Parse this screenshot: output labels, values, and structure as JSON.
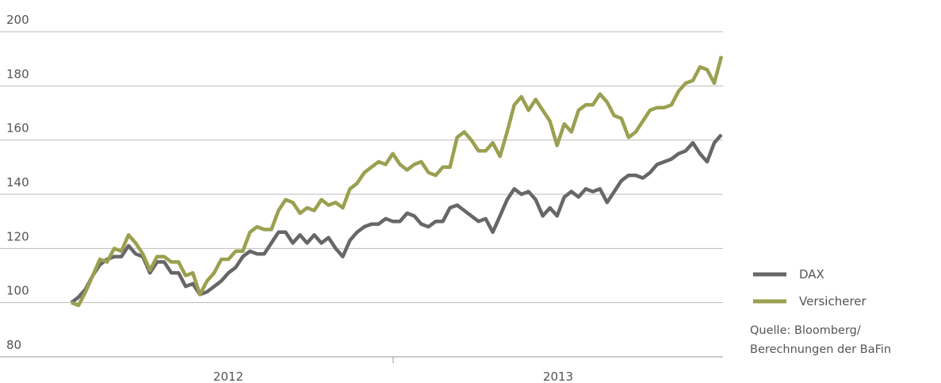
{
  "chart_data": {
    "type": "line",
    "year_labels": [
      "2012",
      "2013"
    ],
    "ylim": [
      80,
      200
    ],
    "yticks": [
      80,
      100,
      120,
      140,
      160,
      180,
      200
    ],
    "grid": true,
    "legend": "right",
    "series": [
      {
        "name": "DAX",
        "color": "#67676a",
        "values": [
          100,
          102,
          105,
          110,
          114,
          116,
          117,
          117,
          121,
          118,
          117,
          111,
          115,
          115,
          111,
          111,
          106,
          107,
          103,
          104,
          106,
          108,
          111,
          113,
          117,
          119,
          118,
          118,
          122,
          126,
          126,
          122,
          125,
          122,
          125,
          122,
          124,
          120,
          117,
          123,
          126,
          128,
          129,
          129,
          131,
          130,
          130,
          133,
          132,
          129,
          128,
          130,
          130,
          135,
          136,
          134,
          132,
          130,
          131,
          126,
          132,
          138,
          142,
          140,
          141,
          138,
          132,
          135,
          132,
          139,
          141,
          139,
          142,
          141,
          142,
          137,
          141,
          145,
          147,
          147,
          146,
          148,
          151,
          152,
          153,
          155,
          156,
          159,
          155,
          152,
          159,
          162
        ]
      },
      {
        "name": "Versicherer",
        "color": "#9aa050",
        "values": [
          100,
          99,
          104,
          110,
          116,
          115,
          120,
          119,
          125,
          122,
          118,
          112,
          117,
          117,
          115,
          115,
          110,
          111,
          103,
          108,
          111,
          116,
          116,
          119,
          119,
          126,
          128,
          127,
          127,
          134,
          138,
          137,
          133,
          135,
          134,
          138,
          136,
          137,
          135,
          142,
          144,
          148,
          150,
          152,
          151,
          155,
          151,
          149,
          151,
          152,
          148,
          147,
          150,
          150,
          161,
          163,
          160,
          156,
          156,
          159,
          154,
          163,
          173,
          176,
          171,
          175,
          171,
          167,
          158,
          166,
          163,
          171,
          173,
          173,
          177,
          174,
          169,
          168,
          161,
          163,
          167,
          171,
          172,
          172,
          173,
          178,
          181,
          182,
          187,
          186,
          181,
          191
        ]
      }
    ],
    "source": [
      "Quelle: Bloomberg/",
      "Berechnungen der BaFin"
    ]
  }
}
